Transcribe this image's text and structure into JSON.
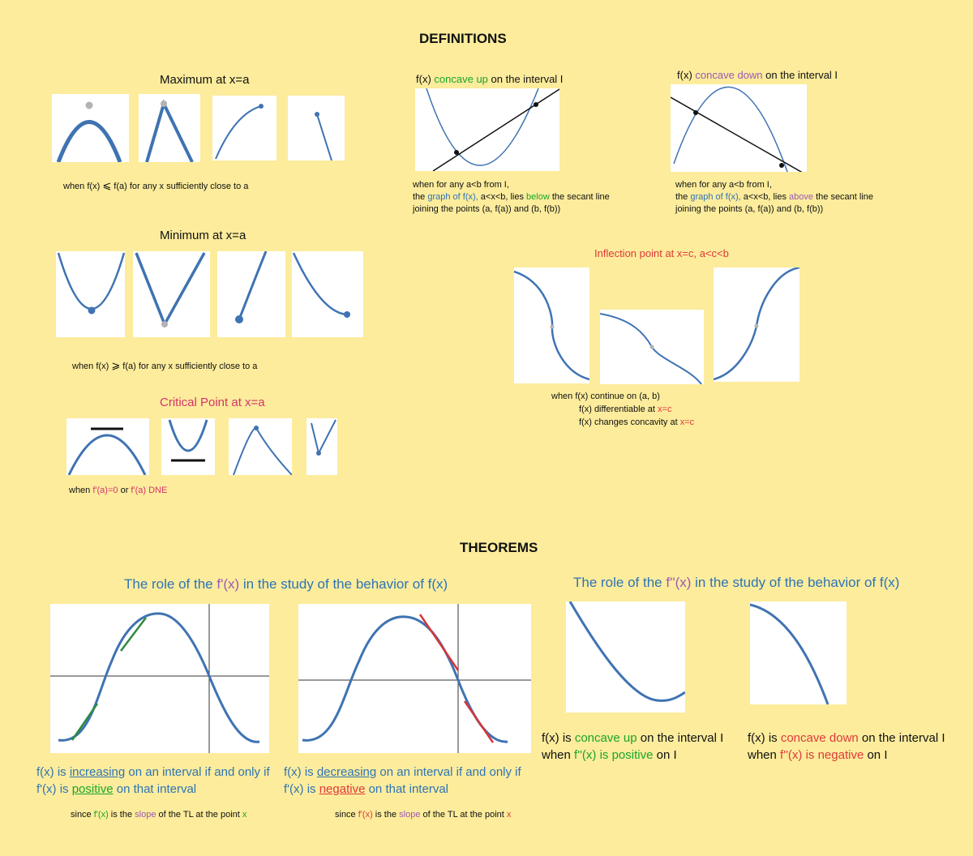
{
  "colors": {
    "background": "#fcec9c",
    "curve": "#3f73b2",
    "blue_text": "#2e74b5",
    "green": "#1aa52a",
    "purple": "#9b59b6",
    "red": "#e0393a",
    "pink": "#d6336c",
    "gray_dot": "#b3b3b3"
  },
  "definitions": {
    "heading": "DEFINITIONS",
    "maximum": {
      "title": "Maximum at x=a",
      "cap_a": "when f(x)",
      "cap_sym": "⩽",
      "cap_b": "f(a) for any x sufficiently close to a"
    },
    "minimum": {
      "title": "Minimum at x=a",
      "cap_a": "when f(x)",
      "cap_sym": "⩾",
      "cap_b": "f(a) for any x sufficiently close to a"
    },
    "critical": {
      "title": "Critical Point at x=a",
      "cap_when": "when",
      "cap_eq": "f'(a)=0",
      "cap_or": "or",
      "cap_dne": "f'(a) DNE"
    },
    "concave_up": {
      "title_a": "f(x)",
      "title_hl": "concave up",
      "title_b": "on the interval I",
      "line1": "when for any a<b from I,",
      "l2_a": "the",
      "l2_graph": "graph of f(x),",
      "l2_b": "a<x<b, lies",
      "l2_pos": "below",
      "l2_c": "the secant line",
      "line3": "joining the points (a, f(a)) and (b, f(b))"
    },
    "concave_down": {
      "title_a": "f(x)",
      "title_hl": "concave down",
      "title_b": "on the interval I",
      "line1": "when for any a<b from I,",
      "l2_a": "the",
      "l2_graph": "graph of f(x),",
      "l2_b": "a<x<b, lies",
      "l2_pos": "above",
      "l2_c": "the secant line",
      "line3": "joining the points (a, f(a)) and (b, f(b))"
    },
    "inflection": {
      "title": "Inflection point at x=c, a<c<b",
      "c1": "when  f(x) continue on (a, b)",
      "c2": "f(x) differentiable at",
      "c2_hl": "x=c",
      "c3": "f(x) changes concavity at",
      "c3_hl": "x=c"
    }
  },
  "theorems": {
    "heading": "THEOREMS",
    "fprime": {
      "title_a": "The role of the",
      "title_hl": "f'(x)",
      "title_b": "in the study of the behavior of f(x)"
    },
    "increasing": {
      "a": "f(x) is",
      "hl": "increasing",
      "b": "on an interval if and only if",
      "c": "f'(x) is",
      "pos": "positive",
      "d": " on that interval"
    },
    "decreasing": {
      "a": "f(x) is",
      "de": "de",
      "hl": "creasing",
      "b": "on an interval if and only if",
      "c": "f'(x) is",
      "neg": "negative",
      "d": "on that interval"
    },
    "since": {
      "a": "since",
      "fp": "f'(x)",
      "b": "is the",
      "slope": "slope",
      "c": "of the TL at the point",
      "x": "x"
    },
    "fsecond": {
      "title_a": "The role of the",
      "title_hl": "f''(x)",
      "title_b": "in the study of the behavior of f(x)"
    },
    "cup": {
      "a": "f(x) is",
      "hl": "concave up",
      "b": "on the interval I",
      "c": "when",
      "fpp": "f''(x) is positive",
      "d": "on I"
    },
    "cdown": {
      "a": "f(x) is",
      "hl": "concave down",
      "b": "on the interval I",
      "c": "when",
      "fpp": "f''(x) is negative",
      "d": "on I"
    }
  }
}
